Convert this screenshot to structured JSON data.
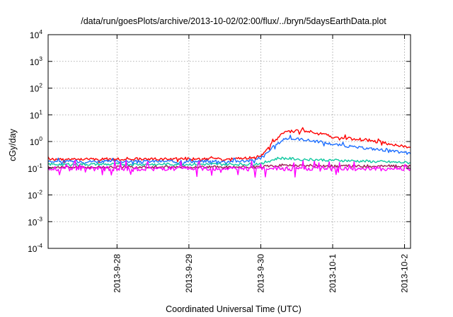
{
  "chart_data": {
    "type": "line",
    "title": "/data/run/goesPlots/archive/2013-10-02/02:00/flux/../bryn/5daysEarthData.plot",
    "xlabel": "Coordinated Universal Time (UTC)",
    "ylabel": "cGy/day",
    "yscale": "log",
    "ylim": [
      0.0001,
      10000
    ],
    "yticks": [
      {
        "base": "10",
        "exp": "4",
        "value": 10000
      },
      {
        "base": "10",
        "exp": "3",
        "value": 1000
      },
      {
        "base": "10",
        "exp": "2",
        "value": 100
      },
      {
        "base": "10",
        "exp": "1",
        "value": 10
      },
      {
        "base": "10",
        "exp": "0",
        "value": 1
      },
      {
        "base": "10",
        "exp": "-1",
        "value": 0.1
      },
      {
        "base": "10",
        "exp": "-2",
        "value": 0.01
      },
      {
        "base": "10",
        "exp": "-3",
        "value": 0.001
      },
      {
        "base": "10",
        "exp": "-4",
        "value": 0.0001
      }
    ],
    "xlim": [
      "2013-09-27 01:00",
      "2013-10-02 02:00"
    ],
    "xticks": [
      {
        "label": "2013-9-28",
        "value": "2013-09-28 00:00"
      },
      {
        "label": "2013-9-29",
        "value": "2013-09-29 00:00"
      },
      {
        "label": "2013-9-30",
        "value": "2013-09-30 00:00"
      },
      {
        "label": "2013-10-1",
        "value": "2013-10-01 00:00"
      },
      {
        "label": "2013-10-2",
        "value": "2013-10-02 00:00"
      }
    ],
    "grid": true,
    "series": [
      {
        "color": "#ff0000",
        "x": [
          "2013-09-27 01:00",
          "2013-09-27 12:00",
          "2013-09-28 00:00",
          "2013-09-28 12:00",
          "2013-09-29 00:00",
          "2013-09-29 12:00",
          "2013-09-29 20:00",
          "2013-09-30 00:00",
          "2013-09-30 04:00",
          "2013-09-30 08:00",
          "2013-09-30 14:00",
          "2013-09-30 20:00",
          "2013-10-01 00:00",
          "2013-10-01 08:00",
          "2013-10-01 16:00",
          "2013-10-02 02:00"
        ],
        "values": [
          0.22,
          0.22,
          0.22,
          0.22,
          0.22,
          0.22,
          0.24,
          0.28,
          0.9,
          2.3,
          2.6,
          2.0,
          1.5,
          1.2,
          0.95,
          0.6
        ]
      },
      {
        "color": "#1e6fff",
        "x": [
          "2013-09-27 01:00",
          "2013-09-27 12:00",
          "2013-09-28 00:00",
          "2013-09-28 12:00",
          "2013-09-29 00:00",
          "2013-09-29 12:00",
          "2013-09-29 20:00",
          "2013-09-30 00:00",
          "2013-09-30 04:00",
          "2013-09-30 08:00",
          "2013-09-30 14:00",
          "2013-09-30 20:00",
          "2013-10-01 00:00",
          "2013-10-01 08:00",
          "2013-10-01 16:00",
          "2013-10-02 02:00"
        ],
        "values": [
          0.18,
          0.18,
          0.18,
          0.18,
          0.18,
          0.18,
          0.19,
          0.22,
          0.6,
          1.3,
          1.2,
          0.95,
          0.8,
          0.6,
          0.5,
          0.35
        ]
      },
      {
        "color": "#11c8a0",
        "x": [
          "2013-09-27 01:00",
          "2013-09-28 00:00",
          "2013-09-29 00:00",
          "2013-09-29 20:00",
          "2013-09-30 00:00",
          "2013-09-30 06:00",
          "2013-09-30 12:00",
          "2013-10-01 00:00",
          "2013-10-01 12:00",
          "2013-10-02 02:00"
        ],
        "values": [
          0.14,
          0.14,
          0.14,
          0.14,
          0.15,
          0.24,
          0.22,
          0.2,
          0.18,
          0.16
        ]
      },
      {
        "color": "#9b1b54",
        "x": [
          "2013-09-27 01:00",
          "2013-09-28 00:00",
          "2013-09-29 00:00",
          "2013-09-30 00:00",
          "2013-09-30 06:00",
          "2013-10-01 00:00",
          "2013-10-02 02:00"
        ],
        "values": [
          0.11,
          0.11,
          0.11,
          0.11,
          0.13,
          0.12,
          0.12
        ]
      },
      {
        "color": "#ff00ff",
        "x": [
          "2013-09-27 01:00",
          "2013-09-28 00:00",
          "2013-09-29 00:00",
          "2013-09-30 00:00",
          "2013-10-01 00:00",
          "2013-10-02 02:00"
        ],
        "values": [
          0.095,
          0.095,
          0.095,
          0.095,
          0.095,
          0.095
        ]
      }
    ]
  }
}
